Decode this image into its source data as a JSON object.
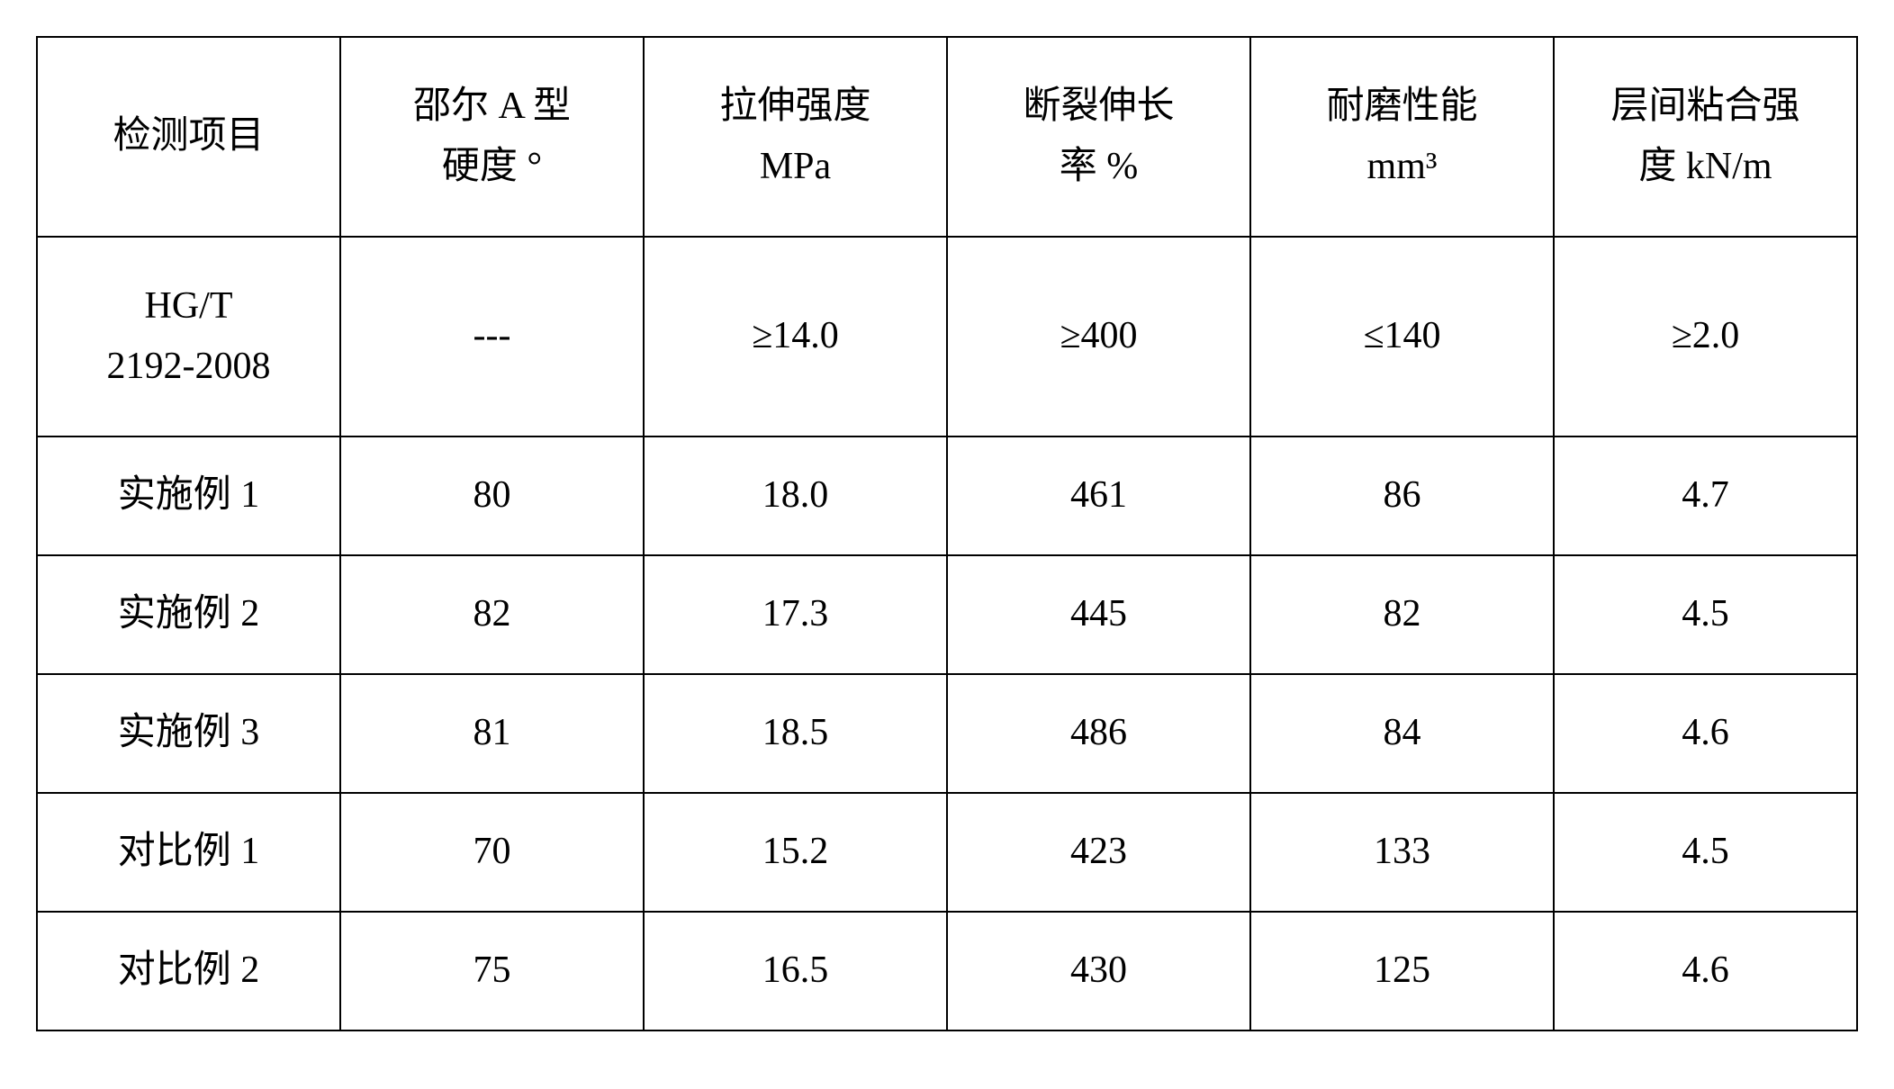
{
  "table": {
    "columns": [
      {
        "label_line1": "检测项目",
        "label_line2": ""
      },
      {
        "label_line1": "邵尔 A 型",
        "label_line2": "硬度  °"
      },
      {
        "label_line1": "拉伸强度",
        "label_line2": "MPa"
      },
      {
        "label_line1": "断裂伸长",
        "label_line2": "率  %"
      },
      {
        "label_line1": "耐磨性能",
        "label_line2": "mm³"
      },
      {
        "label_line1": "层间粘合强",
        "label_line2": "度  kN/m"
      }
    ],
    "rows": [
      {
        "label_line1": "HG/T",
        "label_line2": "2192-2008",
        "c1": "---",
        "c2": "≥14.0",
        "c3": "≥400",
        "c4": "≤140",
        "c5": "≥2.0",
        "tall": true
      },
      {
        "label_line1": "实施例 1",
        "label_line2": "",
        "c1": "80",
        "c2": "18.0",
        "c3": "461",
        "c4": "86",
        "c5": "4.7",
        "tall": false
      },
      {
        "label_line1": "实施例 2",
        "label_line2": "",
        "c1": "82",
        "c2": "17.3",
        "c3": "445",
        "c4": "82",
        "c5": "4.5",
        "tall": false
      },
      {
        "label_line1": "实施例 3",
        "label_line2": "",
        "c1": "81",
        "c2": "18.5",
        "c3": "486",
        "c4": "84",
        "c5": "4.6",
        "tall": false
      },
      {
        "label_line1": "对比例 1",
        "label_line2": "",
        "c1": "70",
        "c2": "15.2",
        "c3": "423",
        "c4": "133",
        "c5": "4.5",
        "tall": false
      },
      {
        "label_line1": "对比例 2",
        "label_line2": "",
        "c1": "75",
        "c2": "16.5",
        "c3": "430",
        "c4": "125",
        "c5": "4.6",
        "tall": false
      }
    ],
    "styling": {
      "border_color": "#000000",
      "border_width": 2,
      "background_color": "#ffffff",
      "text_color": "#000000",
      "font_size": 42,
      "col_widths_pct": [
        16.67,
        16.67,
        16.67,
        16.67,
        16.67,
        16.67
      ]
    }
  }
}
